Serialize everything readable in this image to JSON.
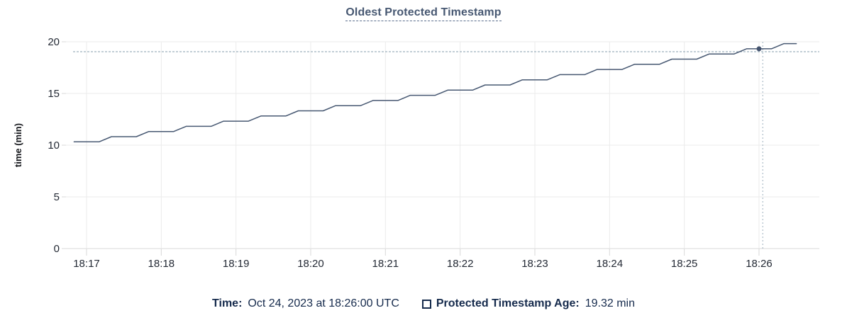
{
  "title": "Oldest Protected Timestamp",
  "colors": {
    "accent": "#475872",
    "line": "#475872",
    "point": "#44536e",
    "legend_text": "#152a4c",
    "tick_text": "#242a35",
    "axis_title_text": "#16181d",
    "grid": "#ebebeb",
    "axis_line": "#d8d8d8",
    "cursor": "#9db0bd"
  },
  "footer": {
    "time_label": "Time:",
    "time_value": "Oct 24, 2023 at 18:26:00 UTC",
    "series_label": "Protected Timestamp Age:",
    "series_value": "19.32 min"
  },
  "chart_data": {
    "type": "line",
    "title": "Oldest Protected Timestamp",
    "xlabel": "",
    "ylabel": "time (min)",
    "ylim": [
      0,
      20
    ],
    "yticks": [
      0,
      5,
      10,
      15,
      20
    ],
    "xticks": [
      "18:17",
      "18:18",
      "18:19",
      "18:20",
      "18:21",
      "18:22",
      "18:23",
      "18:24",
      "18:25",
      "18:26"
    ],
    "grid": true,
    "legend_position": "bottom",
    "x": [
      "18:16:50",
      "18:17:00",
      "18:17:10",
      "18:17:20",
      "18:17:30",
      "18:17:40",
      "18:17:50",
      "18:18:00",
      "18:18:10",
      "18:18:20",
      "18:18:30",
      "18:18:40",
      "18:18:50",
      "18:19:00",
      "18:19:10",
      "18:19:20",
      "18:19:30",
      "18:19:40",
      "18:19:50",
      "18:20:00",
      "18:20:10",
      "18:20:20",
      "18:20:30",
      "18:20:40",
      "18:20:50",
      "18:21:00",
      "18:21:10",
      "18:21:20",
      "18:21:30",
      "18:21:40",
      "18:21:50",
      "18:22:00",
      "18:22:10",
      "18:22:20",
      "18:22:30",
      "18:22:40",
      "18:22:50",
      "18:23:00",
      "18:23:10",
      "18:23:20",
      "18:23:30",
      "18:23:40",
      "18:23:50",
      "18:24:00",
      "18:24:10",
      "18:24:20",
      "18:24:30",
      "18:24:40",
      "18:24:50",
      "18:25:00",
      "18:25:10",
      "18:25:20",
      "18:25:30",
      "18:25:40",
      "18:25:50",
      "18:26:00",
      "18:26:10",
      "18:26:20",
      "18:26:30"
    ],
    "series": [
      {
        "name": "Protected Timestamp Age",
        "unit": "min",
        "values": [
          10.32,
          10.32,
          10.32,
          10.82,
          10.82,
          10.82,
          11.32,
          11.32,
          11.32,
          11.82,
          11.82,
          11.82,
          12.32,
          12.32,
          12.32,
          12.82,
          12.82,
          12.82,
          13.32,
          13.32,
          13.32,
          13.82,
          13.82,
          13.82,
          14.32,
          14.32,
          14.32,
          14.82,
          14.82,
          14.82,
          15.32,
          15.32,
          15.32,
          15.82,
          15.82,
          15.82,
          16.32,
          16.32,
          16.32,
          16.82,
          16.82,
          16.82,
          17.32,
          17.32,
          17.32,
          17.82,
          17.82,
          17.82,
          18.32,
          18.32,
          18.32,
          18.82,
          18.82,
          18.82,
          19.32,
          19.32,
          19.32,
          19.82,
          19.82
        ]
      }
    ],
    "cursor": {
      "time": "18:26:03",
      "value": 19.04,
      "point_time": "18:26:00",
      "point_value": 19.32
    }
  }
}
